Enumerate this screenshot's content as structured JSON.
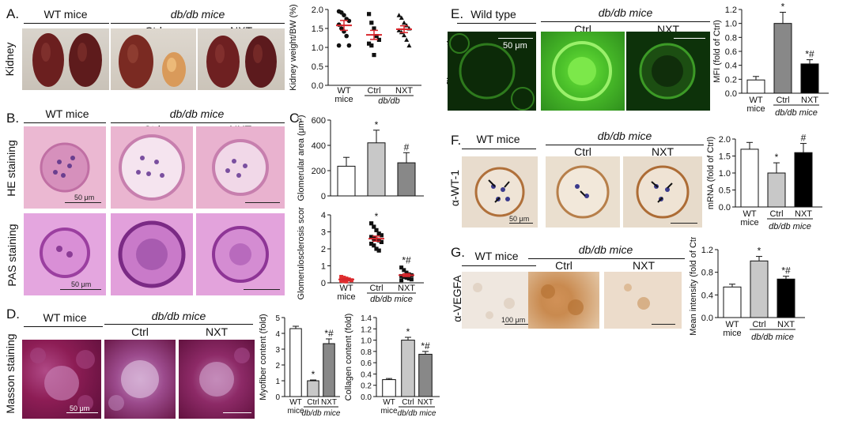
{
  "panels": {
    "A": {
      "label": "A.",
      "row_label": "Kidney",
      "group_wt": "WT mice",
      "group_db": "db/db mice",
      "col_ctrl": "Ctrl",
      "col_nxt": "NXT"
    },
    "B": {
      "label": "B.",
      "group_wt": "WT mice",
      "group_db": "db/db mice",
      "col_ctrl": "Ctrl",
      "col_nxt": "NXT",
      "row_he": "HE staining",
      "row_pas": "PAS staining",
      "scale_he": "50 μm",
      "scale_pas": "50 μm"
    },
    "C": {
      "label": "C."
    },
    "D": {
      "label": "D.",
      "row_label": "Masson staining",
      "group_wt": "WT mice",
      "group_db": "db/db mice",
      "col_ctrl": "Ctrl",
      "col_nxt": "NXT",
      "scale": "50 μm"
    },
    "E": {
      "label": "E.",
      "row_label": "α-fibronectin",
      "group_wt": "Wild type",
      "group_db": "db/db mice",
      "col_ctrl": "Ctrl",
      "col_nxt": "NXT",
      "scale": "50 μm"
    },
    "F": {
      "label": "F.",
      "row_label": "α-WT-1",
      "group_wt": "WT mice",
      "group_db": "db/db mice",
      "col_ctrl": "Ctrl",
      "col_nxt": "NXT",
      "scale": "50 μm"
    },
    "G": {
      "label": "G.",
      "row_label": "α-VEGFA",
      "group_wt": "WT mice",
      "group_db": "db/db mice",
      "col_ctrl": "Ctrl",
      "col_nxt": "NXT",
      "scale": "100 μm"
    }
  },
  "colors": {
    "kidney": "#6b1f1f",
    "he_bg": "#e9b3cf",
    "pas_bg": "#dd9fdb",
    "masson_bg": "#8d1d55",
    "fib_bg": "#2e7a1d",
    "fib_bright": "#55d22b",
    "wt1_bg": "#e6dccd",
    "vegfa_bg": "#eee5dc",
    "vegfa_brown": "#c98a4f",
    "sig_red": "#d8262c",
    "bar_white": "#ffffff",
    "bar_light": "#c8c8c8",
    "bar_mid": "#888888",
    "bar_black": "#000000"
  },
  "chart_data": [
    {
      "id": "kidney-weight",
      "type": "scatter",
      "ylabel": "Kidney weight/BW (%)",
      "ylim": [
        0.0,
        2.0
      ],
      "yticks": [
        "0.0",
        "0.5",
        "1.0",
        "1.5",
        "2.0"
      ],
      "categories": [
        "WT mice",
        "Ctrl",
        "NXT"
      ],
      "group_label": "db/db",
      "means": [
        1.58,
        1.33,
        1.48
      ],
      "sem": [
        0.13,
        0.12,
        0.09
      ],
      "points": [
        [
          1.95,
          1.92,
          1.85,
          1.75,
          1.7,
          1.6,
          1.5,
          1.42,
          1.3,
          1.05,
          1.05
        ],
        [
          1.88,
          1.65,
          1.5,
          1.3,
          1.2,
          1.1,
          1.05,
          0.8
        ],
        [
          1.85,
          1.78,
          1.65,
          1.58,
          1.5,
          1.45,
          1.4,
          1.32,
          1.2,
          1.05
        ]
      ]
    },
    {
      "id": "glomerular-area",
      "type": "bar",
      "ylabel": "Glomerular area (μm²)",
      "ylim": [
        0,
        600
      ],
      "yticks": [
        "0",
        "200",
        "400",
        "600"
      ],
      "categories": [
        "WT mice",
        "Ctrl",
        "NXT"
      ],
      "values": [
        235,
        420,
        262
      ],
      "errors": [
        70,
        100,
        80
      ],
      "sig": [
        "",
        "*",
        "#"
      ],
      "fills": [
        "#ffffff",
        "#c8c8c8",
        "#888888"
      ]
    },
    {
      "id": "glomerulosclerosis",
      "type": "scatter",
      "ylabel": "Glomerulosclerosis scores",
      "ylim": [
        0,
        4
      ],
      "yticks": [
        "0",
        "1",
        "2",
        "3",
        "4"
      ],
      "categories": [
        "WT mice",
        "Ctrl",
        "NXT"
      ],
      "group_label": "db/db mice",
      "means": [
        0.2,
        2.6,
        0.45
      ],
      "sem": [
        0.05,
        0.15,
        0.08
      ],
      "sig": [
        "",
        "*",
        "*#"
      ],
      "points": [
        [
          0.35,
          0.3,
          0.25,
          0.2,
          0.15,
          0.12,
          0.1,
          0.08
        ],
        [
          3.5,
          3.3,
          3.1,
          2.9,
          2.8,
          2.7,
          2.6,
          2.55,
          2.5,
          2.4,
          2.3,
          2.2,
          2.0,
          1.9
        ],
        [
          0.9,
          0.75,
          0.6,
          0.5,
          0.45,
          0.4,
          0.35,
          0.3,
          0.25,
          0.2,
          0.15
        ]
      ]
    },
    {
      "id": "myofiber-content",
      "type": "bar",
      "ylabel": "Myofiber content (fold)",
      "ylim": [
        0,
        5
      ],
      "yticks": [
        "0",
        "1",
        "2",
        "3",
        "4",
        "5"
      ],
      "categories": [
        "WT mice",
        "Ctrl",
        "NXT"
      ],
      "group_label": "db/db mice",
      "values": [
        4.3,
        1.0,
        3.35
      ],
      "errors": [
        0.15,
        0.05,
        0.3
      ],
      "sig": [
        "",
        "*",
        "*#"
      ],
      "fills": [
        "#ffffff",
        "#c8c8c8",
        "#888888"
      ]
    },
    {
      "id": "collagen-content",
      "type": "bar",
      "ylabel": "Collagen content (fold)",
      "ylim": [
        0.0,
        1.4
      ],
      "yticks": [
        "0.0",
        "0.2",
        "0.4",
        "0.6",
        "0.8",
        "1.0",
        "1.2",
        "1.4"
      ],
      "categories": [
        "WT mice",
        "Ctrl",
        "NXT"
      ],
      "group_label": "db/db mice",
      "values": [
        0.3,
        1.0,
        0.75
      ],
      "errors": [
        0.02,
        0.05,
        0.05
      ],
      "sig": [
        "",
        "*",
        "*#"
      ],
      "fills": [
        "#ffffff",
        "#c8c8c8",
        "#888888"
      ]
    },
    {
      "id": "mfi",
      "type": "bar",
      "ylabel": "MFI (fold of Ctrl)",
      "ylim": [
        0.0,
        1.2
      ],
      "yticks": [
        "0.0",
        "0.2",
        "0.4",
        "0.6",
        "0.8",
        "1.0",
        "1.2"
      ],
      "categories": [
        "WT mice",
        "Ctrl",
        "NXT"
      ],
      "group_label": "db/db mice",
      "values": [
        0.19,
        1.0,
        0.42
      ],
      "errors": [
        0.05,
        0.16,
        0.06
      ],
      "sig": [
        "",
        "*",
        "*#"
      ],
      "fills": [
        "#ffffff",
        "#888888",
        "#000000"
      ]
    },
    {
      "id": "wt1-mrna",
      "type": "bar",
      "ylabel": "mRNA (fold of Ctrl)",
      "ylim": [
        0.0,
        2.0
      ],
      "yticks": [
        "0.0",
        "0.5",
        "1.0",
        "1.5",
        "2.0"
      ],
      "categories": [
        "WT mice",
        "Ctrl",
        "NXT"
      ],
      "group_label": "db/db mice",
      "values": [
        1.7,
        1.0,
        1.6
      ],
      "errors": [
        0.2,
        0.3,
        0.27
      ],
      "sig": [
        "",
        "*",
        "#"
      ],
      "fills": [
        "#ffffff",
        "#c8c8c8",
        "#000000"
      ]
    },
    {
      "id": "vegfa-intensity",
      "type": "bar",
      "ylabel": "Mean intensity (fold of Ctrl)",
      "ylim": [
        0.0,
        1.2
      ],
      "yticks": [
        "0.0",
        "0.4",
        "0.8",
        "1.2"
      ],
      "categories": [
        "WT mice",
        "Ctrl",
        "NXT"
      ],
      "group_label": "db/db mice",
      "values": [
        0.54,
        1.0,
        0.68
      ],
      "errors": [
        0.05,
        0.08,
        0.05
      ],
      "sig": [
        "",
        "*",
        "*#"
      ],
      "fills": [
        "#ffffff",
        "#c8c8c8",
        "#000000"
      ]
    }
  ]
}
